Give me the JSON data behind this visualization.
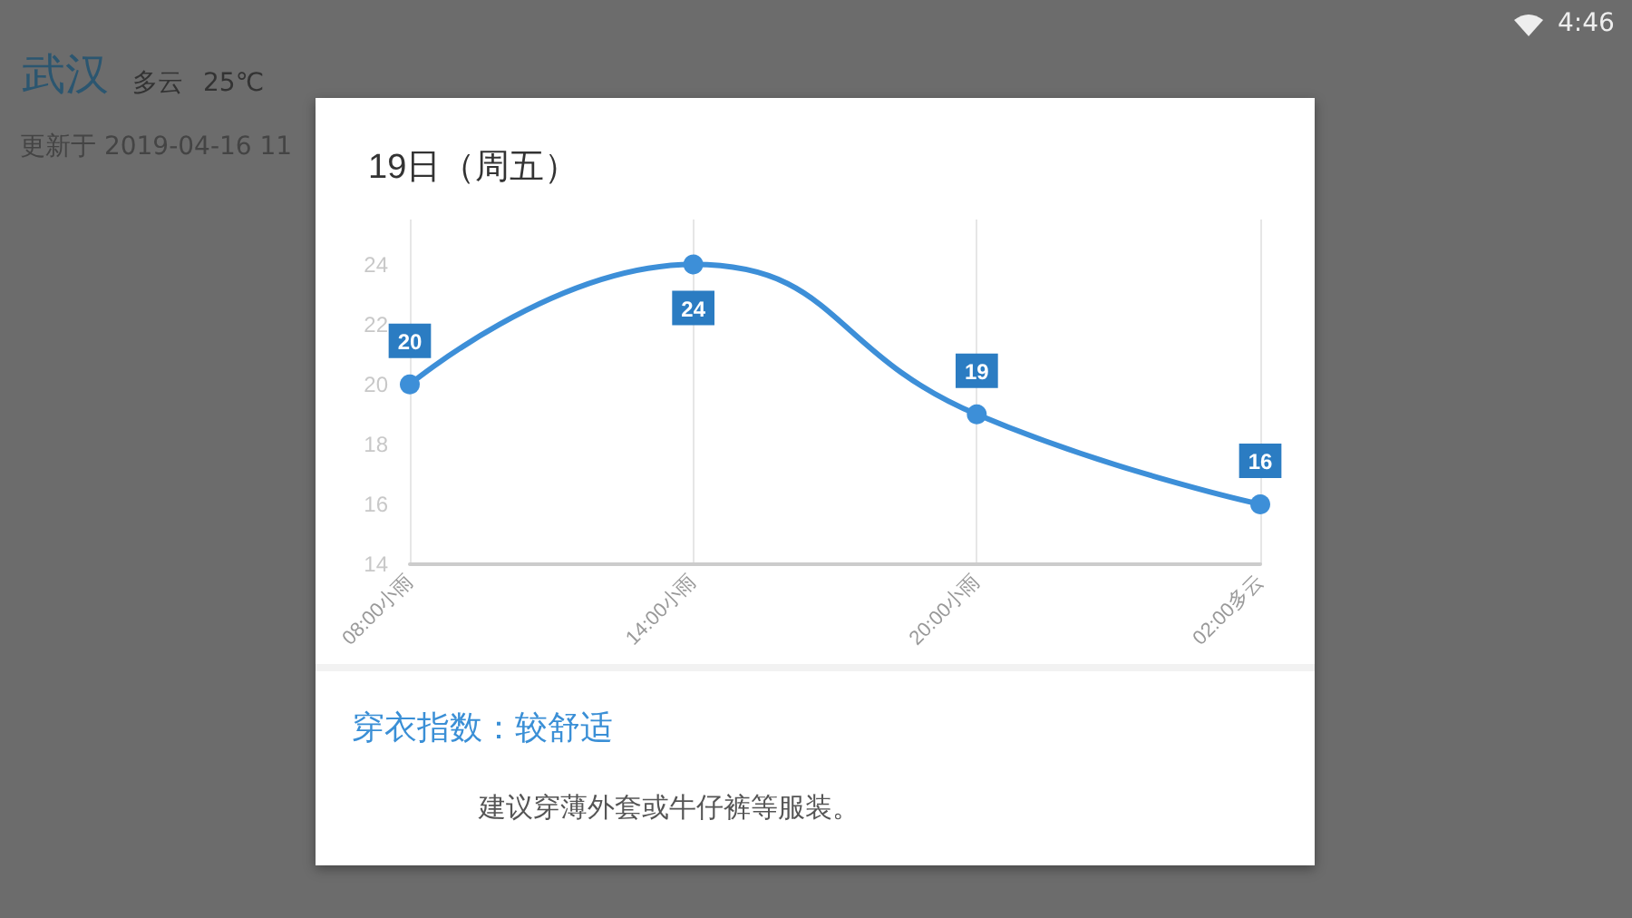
{
  "chart_data": {
    "type": "line",
    "title": "19日（周五）",
    "categories": [
      "08:00小雨",
      "14:00小雨",
      "20:00小雨",
      "02:00多云"
    ],
    "values": [
      20,
      24,
      19,
      16
    ],
    "color": "#3d8fd8",
    "ylim": [
      14,
      25.5
    ],
    "yticks": [
      14,
      16,
      18,
      20,
      22,
      24
    ],
    "grid": "x",
    "marker": "circle",
    "data_labels": true,
    "annotations": [
      "武汉",
      "多云",
      "25℃",
      "更新于 2019-04-16 11",
      "4:46",
      "穿衣指数：较舒适",
      "建议穿薄外套或牛仔裤等服装。"
    ]
  }
}
